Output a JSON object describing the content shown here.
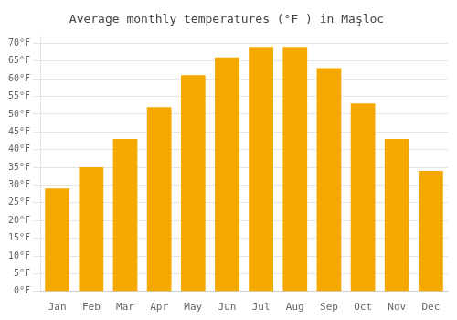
{
  "chart_data": {
    "type": "bar",
    "title": "Average monthly temperatures (°F ) in Maşloc",
    "categories": [
      "Jan",
      "Feb",
      "Mar",
      "Apr",
      "May",
      "Jun",
      "Jul",
      "Aug",
      "Sep",
      "Oct",
      "Nov",
      "Dec"
    ],
    "values": [
      29,
      35,
      43,
      52,
      61,
      66,
      69,
      69,
      63,
      53,
      43,
      34
    ],
    "color": "#F5A800",
    "ylim": [
      0,
      72
    ],
    "yticks": [
      {
        "value": 0,
        "label": "0°F"
      },
      {
        "value": 5,
        "label": "5°F"
      },
      {
        "value": 10,
        "label": "10°F"
      },
      {
        "value": 15,
        "label": "15°F"
      },
      {
        "value": 20,
        "label": "20°F"
      },
      {
        "value": 25,
        "label": "25°F"
      },
      {
        "value": 30,
        "label": "30°F"
      },
      {
        "value": 35,
        "label": "35°F"
      },
      {
        "value": 40,
        "label": "40°F"
      },
      {
        "value": 45,
        "label": "45°F"
      },
      {
        "value": 50,
        "label": "50°F"
      },
      {
        "value": 55,
        "label": "55°F"
      },
      {
        "value": 60,
        "label": "60°F"
      },
      {
        "value": 65,
        "label": "65°F"
      },
      {
        "value": 70,
        "label": "70°F"
      }
    ],
    "grid": true
  }
}
